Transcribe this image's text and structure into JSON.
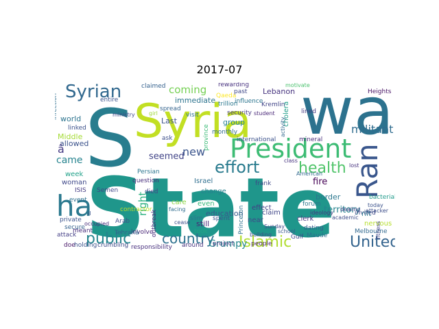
{
  "figure": {
    "title": "2017-07"
  },
  "word_cloud": {
    "words": [
      {
        "text": "State",
        "color": "#1f968b"
      },
      {
        "text": "S",
        "color": "#287d8e"
      },
      {
        "text": "wa",
        "color": "#2c728e"
      },
      {
        "text": "Syria",
        "color": "#c2df23"
      },
      {
        "text": "President",
        "color": "#3dbc74"
      },
      {
        "text": "Syrian",
        "color": "#31688e"
      },
      {
        "text": "Ran",
        "color": "#39568c"
      },
      {
        "text": "ha",
        "color": "#2a788e"
      },
      {
        "text": "effort",
        "color": "#297b8e"
      },
      {
        "text": "health",
        "color": "#50c46a"
      },
      {
        "text": "United",
        "color": "#33638d"
      },
      {
        "text": "Islamic",
        "color": "#b0dd2f"
      },
      {
        "text": "country",
        "color": "#2d708e"
      },
      {
        "text": "public",
        "color": "#25858e"
      },
      {
        "text": "coming",
        "color": "#75d054"
      },
      {
        "text": "militant",
        "color": "#2f6c8e"
      },
      {
        "text": "Grumpy",
        "color": "#24878e"
      },
      {
        "text": "new",
        "color": "#3a548c"
      },
      {
        "text": "right",
        "color": "#29af7f"
      },
      {
        "text": "came",
        "color": "#25838e"
      },
      {
        "text": "seemed",
        "color": "#414487"
      },
      {
        "text": "territory",
        "color": "#25838e"
      },
      {
        "text": "allowed",
        "color": "#3b528b"
      },
      {
        "text": "Lebanon",
        "color": "#46337e"
      },
      {
        "text": "immediate",
        "color": "#2c738e"
      },
      {
        "text": "group",
        "color": "#26828e"
      },
      {
        "text": "education",
        "color": "#38598c"
      },
      {
        "text": "border",
        "color": "#2a768e"
      },
      {
        "text": "fire",
        "color": "#440154"
      },
      {
        "text": "world",
        "color": "#2c738e"
      },
      {
        "text": "Middle",
        "color": "#a5db36"
      },
      {
        "text": "week",
        "color": "#1fa088"
      },
      {
        "text": "woman",
        "color": "#3f4889"
      },
      {
        "text": "Last",
        "color": "#3b528b"
      },
      {
        "text": "care",
        "color": "#8ed645"
      },
      {
        "text": "change",
        "color": "#27808e"
      },
      {
        "text": "still",
        "color": "#482677"
      },
      {
        "text": "even",
        "color": "#35b779"
      },
      {
        "text": "Israel",
        "color": "#2e6e8e"
      },
      {
        "text": "effect",
        "color": "#433d84"
      },
      {
        "text": "near",
        "color": "#3e4989"
      },
      {
        "text": "claim",
        "color": "#404688"
      },
      {
        "text": "clerk",
        "color": "#46327e"
      },
      {
        "text": "frank",
        "color": "#3f4788"
      },
      {
        "text": "forum",
        "color": "#2a788e"
      },
      {
        "text": "cholera",
        "color": "#1f9e89"
      },
      {
        "text": "Kremlin",
        "color": "#414487"
      },
      {
        "text": "security",
        "color": "#453882"
      },
      {
        "text": "â",
        "color": "#443983"
      },
      {
        "text": "mineral",
        "color": "#472d7b"
      },
      {
        "text": "invited",
        "color": "#3e4a89"
      },
      {
        "text": "nervous",
        "color": "#b5de2b"
      },
      {
        "text": "Melbourne",
        "color": "#31688e"
      },
      {
        "text": "dating",
        "color": "#365c8d"
      },
      {
        "text": "rift",
        "color": "#2a788e"
      },
      {
        "text": "bacterial",
        "color": "#1f9a8a"
      },
      {
        "text": "Maude",
        "color": "#2d708e"
      },
      {
        "text": "Gulf",
        "color": "#3e4a89"
      },
      {
        "text": "involve",
        "color": "#482576"
      },
      {
        "text": "died",
        "color": "#404588"
      },
      {
        "text": "responsibility",
        "color": "#472f7d"
      },
      {
        "text": "people",
        "color": "#481f70"
      },
      {
        "text": "Arab",
        "color": "#3e4c8a"
      },
      {
        "text": "Persian",
        "color": "#2b758e"
      },
      {
        "text": "question",
        "color": "#472d7b"
      },
      {
        "text": "contractor",
        "color": "#bddf26"
      },
      {
        "text": "ISIS",
        "color": "#443a83"
      },
      {
        "text": "Semen",
        "color": "#3f4788"
      },
      {
        "text": "private",
        "color": "#3b528b"
      },
      {
        "text": "secure",
        "color": "#34618d"
      },
      {
        "text": "event",
        "color": "#2d708e"
      },
      {
        "text": "attack",
        "color": "#433e85"
      },
      {
        "text": "meant",
        "color": "#472c7a"
      },
      {
        "text": "doe",
        "color": "#481668"
      },
      {
        "text": "holding",
        "color": "#3b528b"
      },
      {
        "text": "crumbling",
        "color": "#3e4a89"
      },
      {
        "text": "project",
        "color": "#453882"
      },
      {
        "text": "around",
        "color": "#46327e"
      },
      {
        "text": "spent",
        "color": "#3a548c"
      },
      {
        "text": "took",
        "color": "#21a585"
      },
      {
        "text": "monthly",
        "color": "#2f6b8e"
      },
      {
        "text": "province",
        "color": "#3aba76"
      },
      {
        "text": "spread",
        "color": "#33638d"
      },
      {
        "text": "claimed",
        "color": "#34618d"
      },
      {
        "text": "entire",
        "color": "#3b528b"
      },
      {
        "text": "infection",
        "color": "#2e6e8e"
      },
      {
        "text": "linked",
        "color": "#3b518b"
      },
      {
        "text": "visit",
        "color": "#2c738e"
      },
      {
        "text": "ask",
        "color": "#3c4f8a"
      },
      {
        "text": "Qaeda",
        "color": "#fde725"
      },
      {
        "text": "past",
        "color": "#3f4889"
      },
      {
        "text": "trillion",
        "color": "#2a778e"
      },
      {
        "text": "influence",
        "color": "#2b748e"
      },
      {
        "text": "rewarding",
        "color": "#46307e"
      },
      {
        "text": "international",
        "color": "#3b518b"
      },
      {
        "text": "Heights",
        "color": "#471365"
      },
      {
        "text": "school",
        "color": "#38598c"
      },
      {
        "text": "Princeton",
        "color": "#2d718e"
      },
      {
        "text": "Tehranâ",
        "color": "#33638d"
      },
      {
        "text": "lined",
        "color": "#453882"
      },
      {
        "text": "today",
        "color": "#3b528b"
      },
      {
        "text": "lost",
        "color": "#46327e"
      },
      {
        "text": "ideology",
        "color": "#453781"
      },
      {
        "text": "academic",
        "color": "#3d4d8a"
      },
      {
        "text": "fitness",
        "color": "#414487"
      },
      {
        "text": "American",
        "color": "#31688e"
      },
      {
        "text": "Sunday",
        "color": "#3e4989"
      },
      {
        "text": "slim",
        "color": "#2d708e"
      },
      {
        "text": "building",
        "color": "#3d4e8a"
      },
      {
        "text": "girl",
        "color": "#a0da39"
      },
      {
        "text": "ministry",
        "color": "#3f4788"
      },
      {
        "text": "outbreak",
        "color": "#472a7a"
      },
      {
        "text": "facing",
        "color": "#2f6c8e"
      },
      {
        "text": "cease",
        "color": "#3c4f8a"
      },
      {
        "text": "occupied",
        "color": "#472c7a"
      },
      {
        "text": "il",
        "color": "#3b528b"
      },
      {
        "text": "class",
        "color": "#46337f"
      },
      {
        "text": "activity",
        "color": "#31688e"
      },
      {
        "text": "motivate",
        "color": "#4ac16d"
      },
      {
        "text": "student",
        "color": "#482677"
      },
      {
        "text": "attacker",
        "color": "#3d4e8a"
      },
      {
        "text": "dealing",
        "color": "#404387"
      }
    ]
  }
}
